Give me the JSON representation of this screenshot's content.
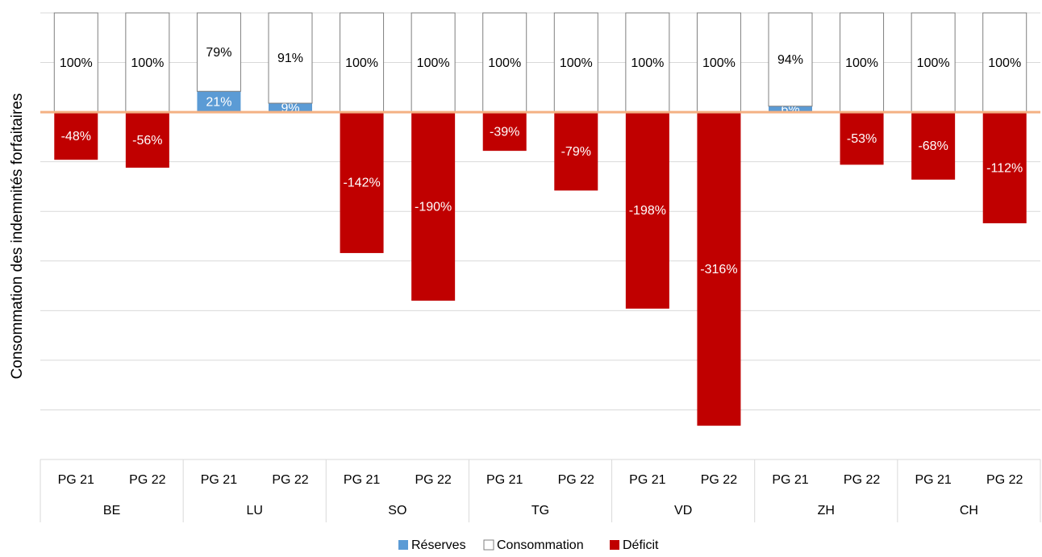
{
  "chart_data": {
    "type": "stacked_bar",
    "y_label": "Consommation des indemnités forfaitaires",
    "categories": [
      "PG 21",
      "PG 22",
      "PG 21",
      "PG 22",
      "PG 21",
      "PG 22",
      "PG 21",
      "PG 22",
      "PG 21",
      "PG 22",
      "PG 21",
      "PG 22",
      "PG 21",
      "PG 22"
    ],
    "groups": [
      "BE",
      "LU",
      "SO",
      "TG",
      "VD",
      "ZH",
      "CH"
    ],
    "series": [
      {
        "name": "Réserves",
        "color": "#5b9bd5",
        "label_color": "#ffffff",
        "values": [
          null,
          null,
          21,
          9,
          null,
          null,
          null,
          null,
          null,
          null,
          6,
          null,
          null,
          null
        ],
        "value_labels": [
          null,
          null,
          "21%",
          "9%",
          null,
          null,
          null,
          null,
          null,
          null,
          "6%",
          null,
          null,
          null
        ]
      },
      {
        "name": "Consommation",
        "color": "#ffffff",
        "stroke": "#7f7f7f",
        "label_color": "#000000",
        "values": [
          100,
          100,
          79,
          91,
          100,
          100,
          100,
          100,
          100,
          100,
          94,
          100,
          100,
          100
        ],
        "value_labels": [
          "100%",
          "100%",
          "79%",
          "91%",
          "100%",
          "100%",
          "100%",
          "100%",
          "100%",
          "100%",
          "94%",
          "100%",
          "100%",
          "100%"
        ]
      },
      {
        "name": "Déficit",
        "color": "#c00000",
        "label_color": "#ffffff",
        "values": [
          -48,
          -56,
          null,
          null,
          -142,
          -190,
          -39,
          -79,
          -198,
          -316,
          null,
          -53,
          -68,
          -112
        ],
        "value_labels": [
          "-48%",
          "-56%",
          null,
          null,
          "-142%",
          "-190%",
          "-39%",
          "-79%",
          "-198%",
          "-316%",
          null,
          "-53%",
          "-68%",
          "-112%"
        ]
      }
    ],
    "ylim": [
      -350,
      100
    ],
    "yticks": [
      -350,
      -300,
      -250,
      -200,
      -150,
      -100,
      -50,
      0,
      50,
      100
    ],
    "grid": true,
    "zero_line_color": "#f4b183",
    "legend": "bottom"
  }
}
